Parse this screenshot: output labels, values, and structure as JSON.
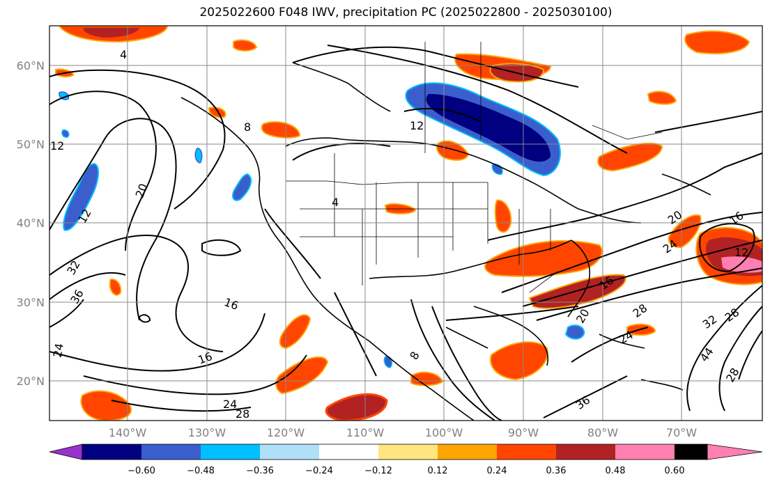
{
  "title": "2025022600 F048 IWV, precipitation PC (2025022800 - 2025030100)",
  "latitude_labels": [
    "60°N",
    "50°N",
    "40°N",
    "30°N",
    "20°N"
  ],
  "longitude_labels": [
    "140°W",
    "130°W",
    "120°W",
    "110°W",
    "100°W",
    "90°W",
    "80°W",
    "70°W"
  ],
  "colorbar": {
    "ticks": [
      "−0.60",
      "−0.48",
      "−0.36",
      "−0.24",
      "−0.12",
      "0.12",
      "0.24",
      "0.36",
      "0.48",
      "0.60"
    ],
    "colors": [
      "#9932cc",
      "#000080",
      "#3a5fcd",
      "#00bfff",
      "#b0e0f8",
      "#ffffff",
      "#ffe680",
      "#ffa500",
      "#ff4500",
      "#b22222",
      "#ff80b0"
    ]
  },
  "contour_labels": [
    "12",
    "20",
    "12",
    "8",
    "4",
    "16",
    "16",
    "24",
    "28",
    "36",
    "32",
    "24",
    "16",
    "24",
    "20",
    "16",
    "12",
    "28",
    "20",
    "24",
    "44",
    "32",
    "28",
    "36",
    "28",
    "12",
    "8",
    "4"
  ],
  "colors": {
    "negative_strong": "#000080",
    "negative_mid": "#3a5fcd",
    "negative_light": "#00bfff",
    "positive_light": "#ffa500",
    "positive_mid": "#ff4500",
    "positive_strong": "#b22222",
    "positive_max": "#ff80b0"
  }
}
